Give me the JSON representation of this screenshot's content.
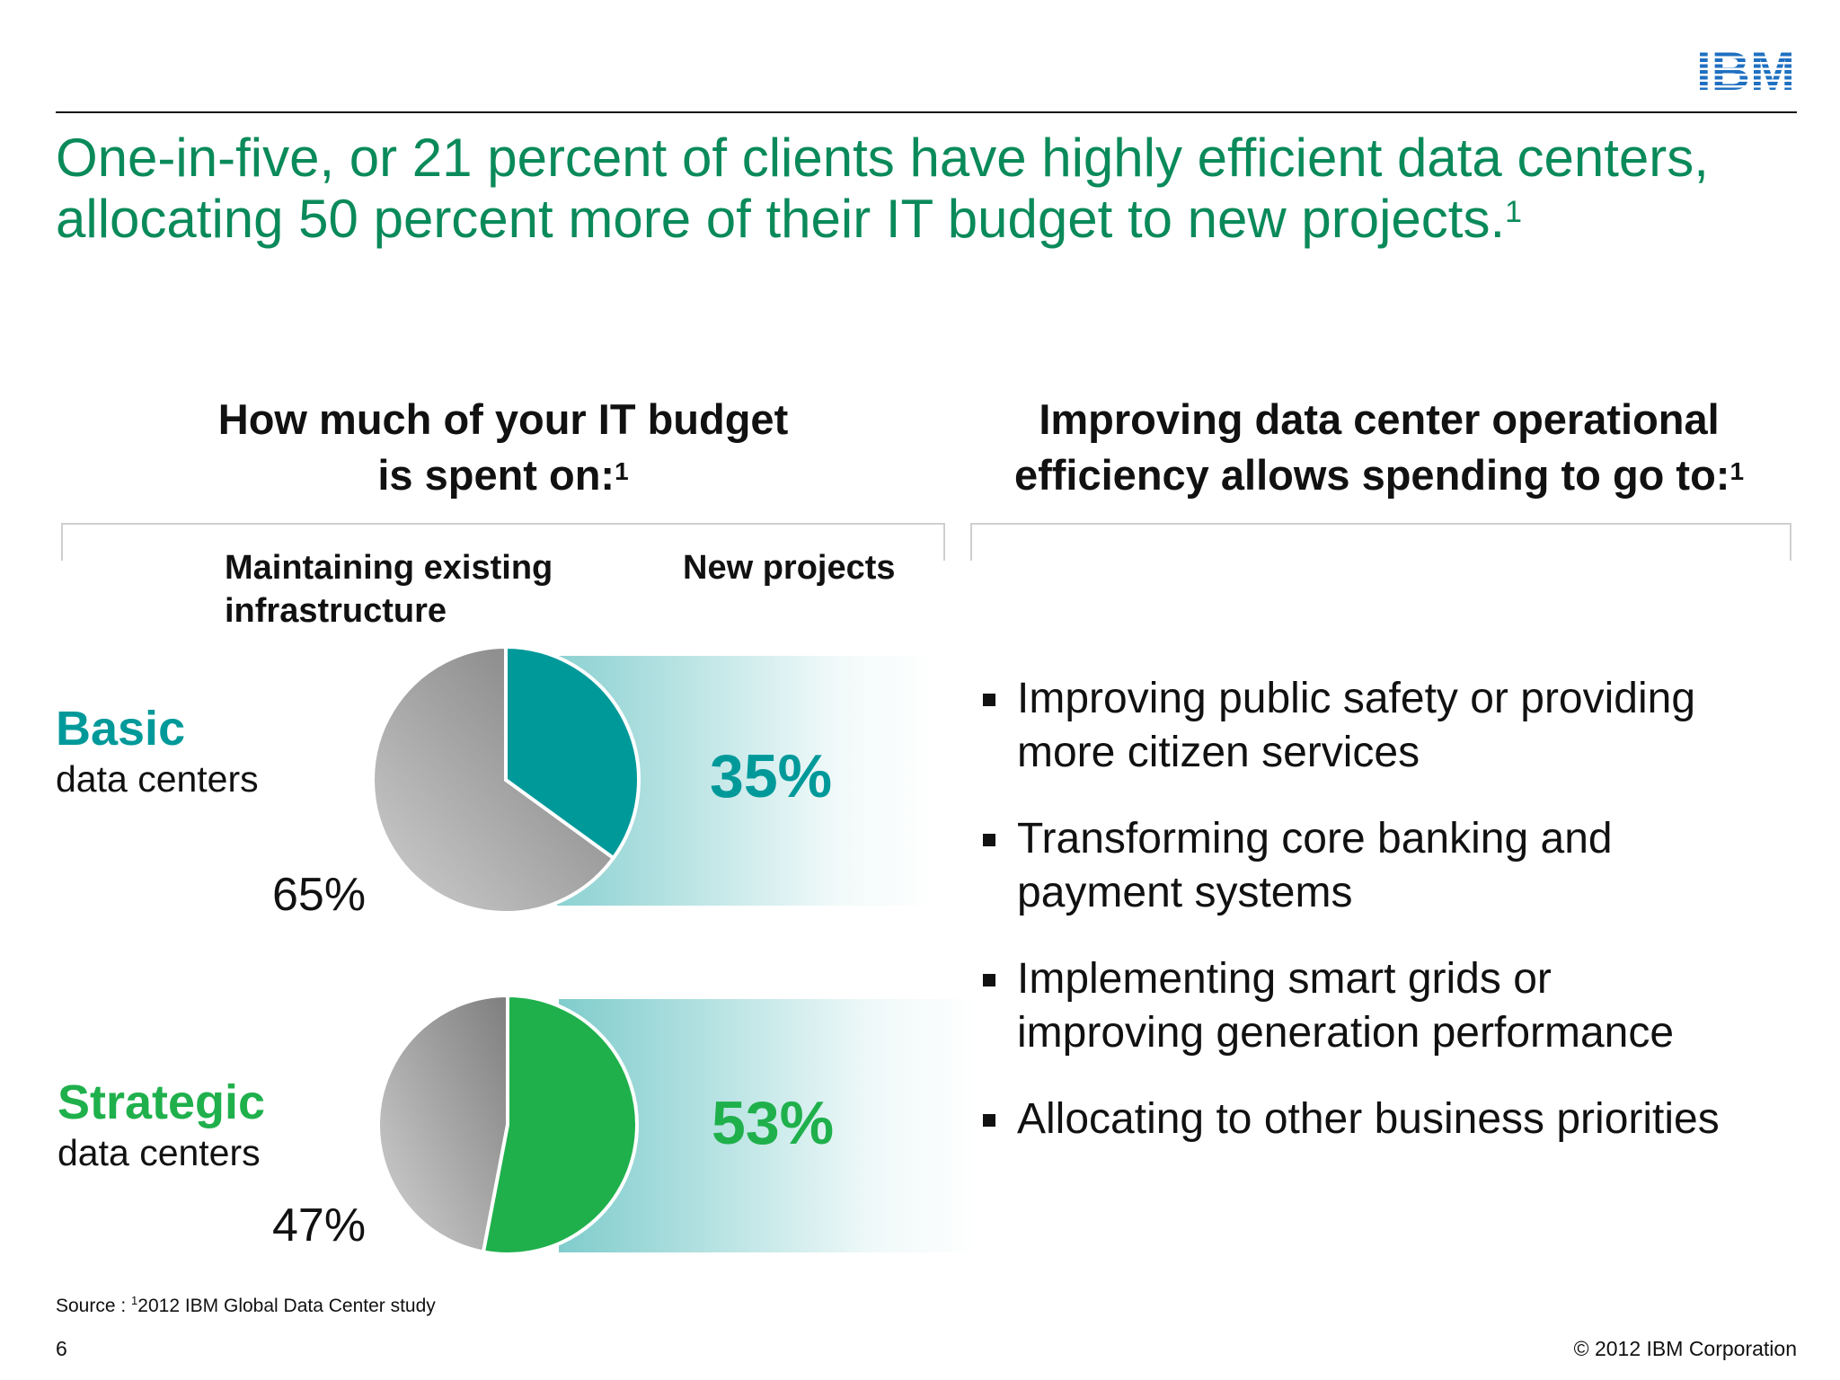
{
  "logo_text": "IBM",
  "headline": {
    "line1": "One-in-five, or 21 percent of clients have highly efficient data centers,",
    "line2": "allocating 50 percent more of their IT budget to new projects.",
    "sup": "1"
  },
  "left_column": {
    "title_line1": "How much of your IT budget",
    "title_line2": "is spent on:",
    "title_sup": "1",
    "col_label_maintain_line1": "Maintaining existing",
    "col_label_maintain_line2": "infrastructure",
    "col_label_new": "New projects"
  },
  "right_column": {
    "title_line1": "Improving data center operational",
    "title_line2": "efficiency allows spending to go to:",
    "title_sup": "1",
    "bullets": [
      {
        "line1": "Improving public safety or providing",
        "line2": "more citizen services"
      },
      {
        "line1": "Transforming core banking and",
        "line2": "payment systems"
      },
      {
        "line1": "Implementing smart grids or",
        "line2": "improving generation performance"
      },
      {
        "line1": "Allocating to other business priorities",
        "line2": ""
      }
    ]
  },
  "chart_data": [
    {
      "type": "pie",
      "title": "",
      "row_label": "Basic",
      "row_sublabel": "data centers",
      "slices": [
        {
          "label": "Maintaining existing infrastructure",
          "value": 65,
          "display": "65%",
          "color": "#a8a8a8"
        },
        {
          "label": "New projects",
          "value": 35,
          "display": "35%",
          "color": "#00999a"
        }
      ],
      "accent": "#00999a"
    },
    {
      "type": "pie",
      "title": "",
      "row_label": "Strategic",
      "row_sublabel": "data centers",
      "slices": [
        {
          "label": "Maintaining existing infrastructure",
          "value": 47,
          "display": "47%",
          "color": "#a8a8a8"
        },
        {
          "label": "New projects",
          "value": 53,
          "display": "53%",
          "color": "#1fb04c"
        }
      ],
      "accent": "#1fb04c"
    }
  ],
  "footer": {
    "source_label": "Source : ",
    "source_sup": "1",
    "source_text": "2012 IBM Global Data Center study",
    "page_number": "6",
    "copyright": "© 2012 IBM Corporation"
  },
  "colors": {
    "headline_green": "#0a8a5a",
    "basic_teal": "#00999a",
    "strategic_green": "#1fb04c",
    "ibm_blue": "#1f70c1"
  }
}
